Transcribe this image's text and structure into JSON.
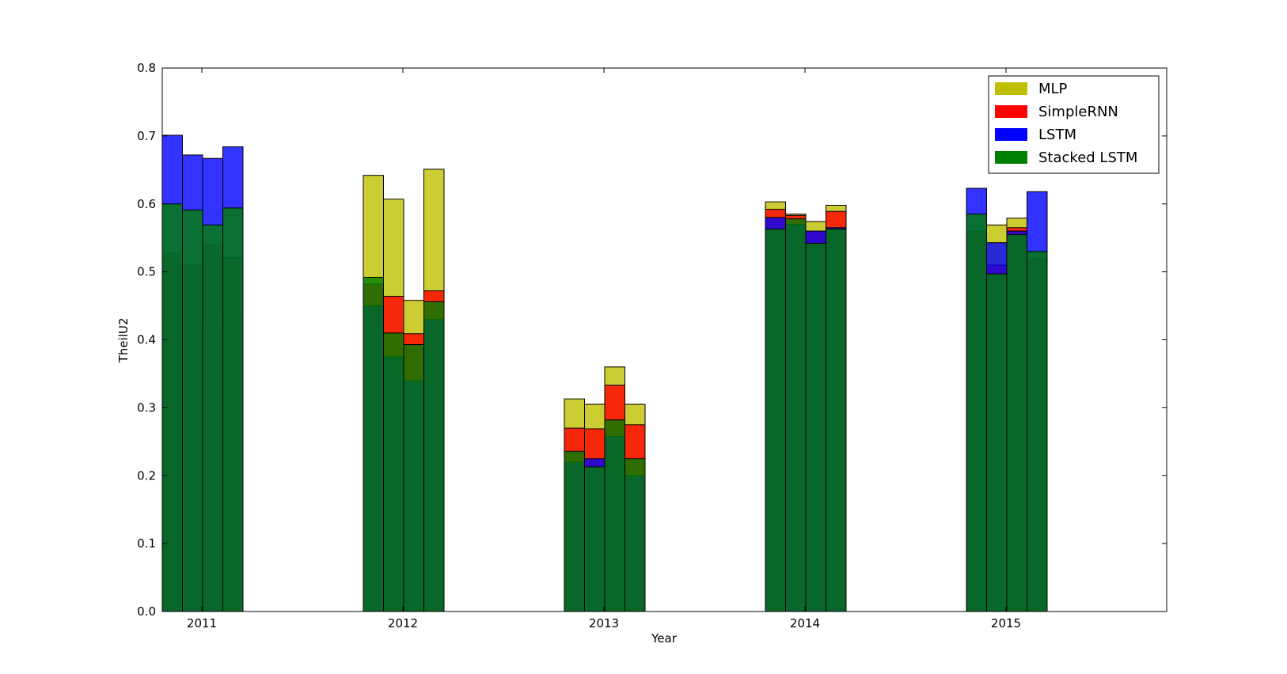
{
  "chart_data": {
    "type": "bar",
    "title": "",
    "xlabel": "Year",
    "ylabel": "TheilU2",
    "ylim": [
      0,
      0.8
    ],
    "yticks": [
      "0.0",
      "0.1",
      "0.2",
      "0.3",
      "0.4",
      "0.5",
      "0.6",
      "0.7",
      "0.8"
    ],
    "categories": [
      "2011",
      "2012",
      "2013",
      "2014",
      "2015"
    ],
    "bars_per_group": 4,
    "grid": false,
    "legend_position": "top-right",
    "series": [
      {
        "name": "MLP",
        "color": "#bfbf00",
        "values": [
          [
            0.424,
            0.424,
            0.42,
            0.434
          ],
          [
            0.642,
            0.607,
            0.458,
            0.651
          ],
          [
            0.313,
            0.305,
            0.36,
            0.305
          ],
          [
            0.603,
            0.585,
            0.574,
            0.598
          ],
          [
            0.555,
            0.569,
            0.579,
            0.515
          ]
        ]
      },
      {
        "name": "SimpleRNN",
        "color": "#ff0000",
        "values": [
          [
            0.527,
            0.51,
            0.54,
            0.521
          ],
          [
            0.482,
            0.464,
            0.409,
            0.472
          ],
          [
            0.27,
            0.269,
            0.333,
            0.275
          ],
          [
            0.592,
            0.583,
            0.56,
            0.589
          ],
          [
            0.56,
            0.51,
            0.565,
            0.52
          ]
        ]
      },
      {
        "name": "LSTM",
        "color": "#0000ff",
        "values": [
          [
            0.701,
            0.672,
            0.667,
            0.684
          ],
          [
            0.45,
            0.375,
            0.34,
            0.43
          ],
          [
            0.22,
            0.225,
            0.258,
            0.2
          ],
          [
            0.58,
            0.57,
            0.56,
            0.565
          ],
          [
            0.623,
            0.543,
            0.56,
            0.618
          ]
        ]
      },
      {
        "name": "Stacked LSTM",
        "color": "#008000",
        "values": [
          [
            0.6,
            0.591,
            0.569,
            0.594
          ],
          [
            0.492,
            0.41,
            0.393,
            0.456
          ],
          [
            0.236,
            0.213,
            0.282,
            0.225
          ],
          [
            0.563,
            0.578,
            0.542,
            0.563
          ],
          [
            0.585,
            0.497,
            0.555,
            0.53
          ]
        ]
      }
    ]
  }
}
